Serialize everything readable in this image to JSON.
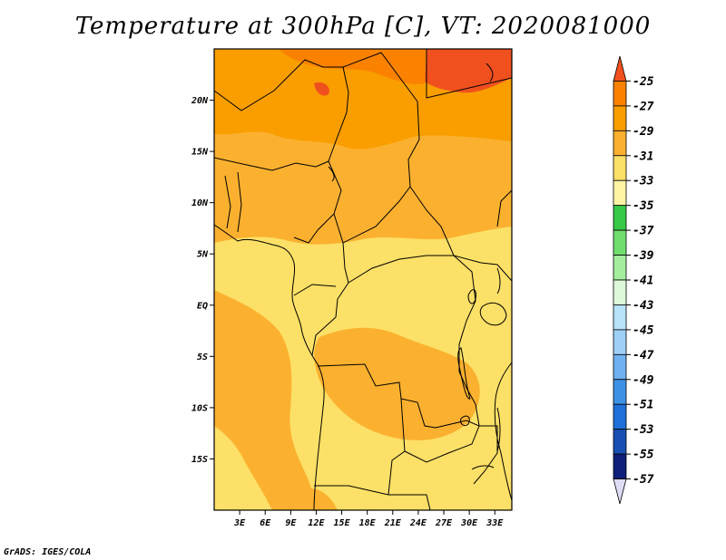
{
  "title": "Temperature at 300hPa [C], VT: 2020081000",
  "credit": "GrADS: IGES/COLA",
  "map": {
    "lon_range": [
      0,
      35
    ],
    "lat_range": [
      -20,
      25
    ],
    "lat_ticks": [
      {
        "value": 20,
        "label": "20N"
      },
      {
        "value": 15,
        "label": "15N"
      },
      {
        "value": 10,
        "label": "10N"
      },
      {
        "value": 5,
        "label": "5N"
      },
      {
        "value": 0,
        "label": "EQ"
      },
      {
        "value": -5,
        "label": "5S"
      },
      {
        "value": -10,
        "label": "10S"
      },
      {
        "value": -15,
        "label": "15S"
      }
    ],
    "lon_ticks": [
      {
        "value": 3,
        "label": "3E"
      },
      {
        "value": 6,
        "label": "6E"
      },
      {
        "value": 9,
        "label": "9E"
      },
      {
        "value": 12,
        "label": "12E"
      },
      {
        "value": 15,
        "label": "15E"
      },
      {
        "value": 18,
        "label": "18E"
      },
      {
        "value": 21,
        "label": "21E"
      },
      {
        "value": 24,
        "label": "24E"
      },
      {
        "value": 27,
        "label": "27E"
      },
      {
        "value": 30,
        "label": "30E"
      },
      {
        "value": 33,
        "label": "33E"
      }
    ]
  },
  "colorbar": {
    "labels": [
      "-25",
      "-27",
      "-29",
      "-31",
      "-33",
      "-35",
      "-37",
      "-39",
      "-41",
      "-43",
      "-45",
      "-47",
      "-49",
      "-51",
      "-53",
      "-55",
      "-57"
    ],
    "colors": [
      "#f0501e",
      "#fa8200",
      "#fa9e00",
      "#fbb12f",
      "#fde067",
      "#fff5a5",
      "#38c948",
      "#70de6e",
      "#a4ee9e",
      "#def8da",
      "#b8e3f9",
      "#9ed0f6",
      "#6fb2f0",
      "#3c93e6",
      "#1f70d8",
      "#1a4fb3",
      "#0f1f7a",
      "#dcdcf5"
    ]
  },
  "palette": {
    "very_warm": "#f0501e",
    "warm": "#fa9e00",
    "mid": "#fbb12f",
    "cool": "#fde067"
  }
}
